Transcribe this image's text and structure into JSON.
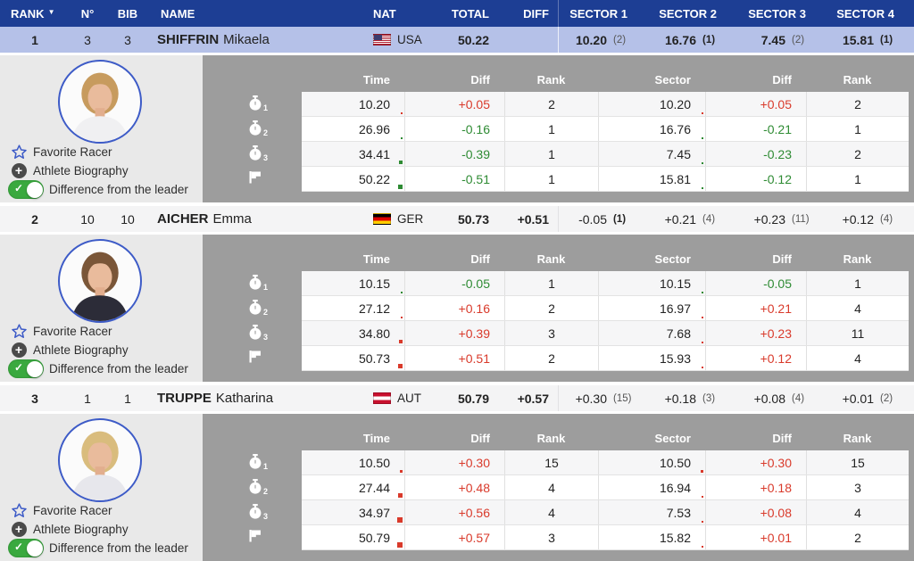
{
  "colors": {
    "header_bg": "#1d3e94",
    "selected_row_bg": "#b5c1e8",
    "panel_bg": "#9d9d9d",
    "left_panel_bg": "#e9e9e9",
    "red": "#d93a2b",
    "green": "#2e8b33",
    "accent_blue": "#3d5bc7",
    "toggle_green": "#3aa93f"
  },
  "header": {
    "sort_indicator": "▼",
    "columns": [
      "RANK",
      "N°",
      "BIB",
      "NAME",
      "NAT",
      "TOTAL",
      "DIFF",
      "SECTOR 1",
      "SECTOR 2",
      "SECTOR 3",
      "SECTOR 4"
    ]
  },
  "labels": {
    "favorite": "Favorite Racer",
    "biography": "Athlete Biography",
    "toggle": "Difference from the leader",
    "table_headers": [
      "Time",
      "Diff",
      "Rank",
      "Sector",
      "Diff",
      "Rank"
    ]
  },
  "racers": [
    {
      "rank": "1",
      "n": "3",
      "bib": "3",
      "last": "SHIFFRIN",
      "first": "Mikaela",
      "nat": {
        "code": "USA",
        "flag": "usa"
      },
      "total": "50.22",
      "diff": "",
      "selected": true,
      "sectors": [
        {
          "value": "10.20",
          "rank": "2"
        },
        {
          "value": "16.76",
          "rank": "1"
        },
        {
          "value": "7.45",
          "rank": "2"
        },
        {
          "value": "15.81",
          "rank": "1"
        }
      ],
      "detail": {
        "rows": [
          {
            "icon_sub": "1",
            "time": "10.20",
            "time_diff": "+0.05",
            "time_rank": "2",
            "sector": "10.20",
            "sector_diff": "+0.05",
            "sector_rank": "2"
          },
          {
            "icon_sub": "2",
            "time": "26.96",
            "time_diff": "-0.16",
            "time_rank": "1",
            "sector": "16.76",
            "sector_diff": "-0.21",
            "sector_rank": "1"
          },
          {
            "icon_sub": "3",
            "time": "34.41",
            "time_diff": "-0.39",
            "time_rank": "1",
            "sector": "7.45",
            "sector_diff": "-0.23",
            "sector_rank": "2"
          },
          {
            "icon_sub": "",
            "time": "50.22",
            "time_diff": "-0.51",
            "time_rank": "1",
            "sector": "15.81",
            "sector_diff": "-0.12",
            "sector_rank": "1"
          }
        ]
      },
      "photo": {
        "jacket": "#f0f0f2",
        "hair": "#c79b5e"
      }
    },
    {
      "rank": "2",
      "n": "10",
      "bib": "10",
      "last": "AICHER",
      "first": "Emma",
      "nat": {
        "code": "GER",
        "flag": "ger"
      },
      "total": "50.73",
      "diff": "+0.51",
      "selected": false,
      "sectors": [
        {
          "value": "-0.05",
          "rank": "1"
        },
        {
          "value": "+0.21",
          "rank": "4"
        },
        {
          "value": "+0.23",
          "rank": "11"
        },
        {
          "value": "+0.12",
          "rank": "4"
        }
      ],
      "detail": {
        "rows": [
          {
            "icon_sub": "1",
            "time": "10.15",
            "time_diff": "-0.05",
            "time_rank": "1",
            "sector": "10.15",
            "sector_diff": "-0.05",
            "sector_rank": "1"
          },
          {
            "icon_sub": "2",
            "time": "27.12",
            "time_diff": "+0.16",
            "time_rank": "2",
            "sector": "16.97",
            "sector_diff": "+0.21",
            "sector_rank": "4"
          },
          {
            "icon_sub": "3",
            "time": "34.80",
            "time_diff": "+0.39",
            "time_rank": "3",
            "sector": "7.68",
            "sector_diff": "+0.23",
            "sector_rank": "11"
          },
          {
            "icon_sub": "",
            "time": "50.73",
            "time_diff": "+0.51",
            "time_rank": "2",
            "sector": "15.93",
            "sector_diff": "+0.12",
            "sector_rank": "4"
          }
        ]
      },
      "photo": {
        "jacket": "#2c2c38",
        "hair": "#7a5638"
      }
    },
    {
      "rank": "3",
      "n": "1",
      "bib": "1",
      "last": "TRUPPE",
      "first": "Katharina",
      "nat": {
        "code": "AUT",
        "flag": "aut"
      },
      "total": "50.79",
      "diff": "+0.57",
      "selected": false,
      "sectors": [
        {
          "value": "+0.30",
          "rank": "15"
        },
        {
          "value": "+0.18",
          "rank": "3"
        },
        {
          "value": "+0.08",
          "rank": "4"
        },
        {
          "value": "+0.01",
          "rank": "2"
        }
      ],
      "detail": {
        "rows": [
          {
            "icon_sub": "1",
            "time": "10.50",
            "time_diff": "+0.30",
            "time_rank": "15",
            "sector": "10.50",
            "sector_diff": "+0.30",
            "sector_rank": "15"
          },
          {
            "icon_sub": "2",
            "time": "27.44",
            "time_diff": "+0.48",
            "time_rank": "4",
            "sector": "16.94",
            "sector_diff": "+0.18",
            "sector_rank": "3"
          },
          {
            "icon_sub": "3",
            "time": "34.97",
            "time_diff": "+0.56",
            "time_rank": "4",
            "sector": "7.53",
            "sector_diff": "+0.08",
            "sector_rank": "4"
          },
          {
            "icon_sub": "",
            "time": "50.79",
            "time_diff": "+0.57",
            "time_rank": "3",
            "sector": "15.82",
            "sector_diff": "+0.01",
            "sector_rank": "2"
          }
        ]
      },
      "photo": {
        "jacket": "#e7e7ec",
        "hair": "#d9bc7d"
      }
    }
  ]
}
